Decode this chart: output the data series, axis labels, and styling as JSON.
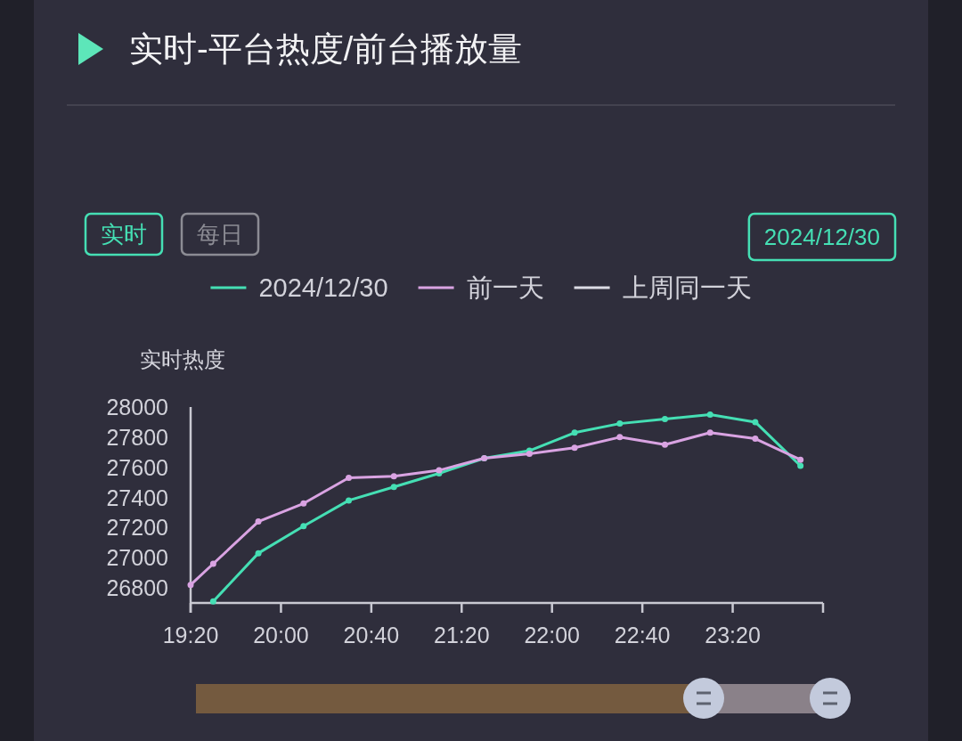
{
  "chart_data": {
    "type": "line",
    "title": "实时-平台热度/前台播放量",
    "ylabel": "实时热度",
    "annotations": [
      "实时",
      "每日",
      "2024/12/30"
    ],
    "series": [
      {
        "name": "2024/12/30",
        "color": "#45dfb4",
        "x": [
          19.5,
          19.8333,
          20.1667,
          20.5,
          20.8333,
          21.1667,
          21.5,
          21.8333,
          22.1667,
          22.5,
          22.8333,
          23.1667,
          23.5,
          23.8333
        ],
        "values": [
          26710,
          27030,
          27210,
          27380,
          27470,
          27560,
          27660,
          27710,
          27830,
          27890,
          27920,
          27950,
          27900,
          27610
        ]
      },
      {
        "name": "前一天",
        "color": "#d9a3e2",
        "x": [
          19.3333,
          19.5,
          19.8333,
          20.1667,
          20.5,
          20.8333,
          21.1667,
          21.5,
          21.8333,
          22.1667,
          22.5,
          22.8333,
          23.1667,
          23.5,
          23.8333
        ],
        "values": [
          26820,
          26960,
          27240,
          27360,
          27530,
          27540,
          27580,
          27660,
          27690,
          27730,
          27800,
          27750,
          27830,
          27790,
          27650
        ]
      },
      {
        "name": "上周同一天",
        "color": "#dcdce4"
      }
    ],
    "xlim": [
      19.3333,
      24
    ],
    "xticks": [
      {
        "value": 19.3333,
        "label": "19:20"
      },
      {
        "value": 20,
        "label": "20:00"
      },
      {
        "value": 20.6667,
        "label": "20:40"
      },
      {
        "value": 21.3333,
        "label": "21:20"
      },
      {
        "value": 22,
        "label": "22:00"
      },
      {
        "value": 22.6667,
        "label": "22:40"
      },
      {
        "value": 23.3333,
        "label": "23:20"
      },
      {
        "value": 24,
        "label": null
      }
    ],
    "ylim": [
      26700,
      28000
    ],
    "yticks": [
      26800,
      27000,
      27200,
      27400,
      27600,
      27800,
      28000
    ],
    "legend": "top",
    "marker": "circle",
    "line_style": "solid"
  }
}
